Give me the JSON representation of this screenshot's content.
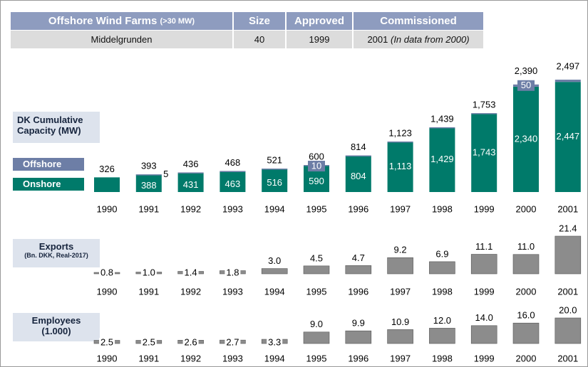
{
  "table": {
    "header": [
      "Offshore Wind Farms",
      "Size",
      "Approved",
      "Commissioned"
    ],
    "header_note": "(>30 MW)",
    "rows": [
      [
        "Middelgrunden",
        40,
        1999,
        2001
      ]
    ],
    "row_note": "(In data from 2000)"
  },
  "chart_data": [
    {
      "type": "stacked_bar",
      "title": "DK Cumulative Capacity  (MW)",
      "categories": [
        "1990",
        "1991",
        "1992",
        "1993",
        "1994",
        "1995",
        "1996",
        "1997",
        "1998",
        "1999",
        "2000",
        "2001"
      ],
      "series": [
        {
          "name": "Onshore",
          "color": "#007a6a",
          "values": [
            326,
            388,
            431,
            463,
            516,
            590,
            804,
            1113,
            1429,
            1743,
            2340,
            2447
          ],
          "value_labels": [
            null,
            "388",
            "431",
            "463",
            "516",
            "590",
            "804",
            "1,113",
            "1,429",
            "1,743",
            "2,340",
            "2,447"
          ]
        },
        {
          "name": "Offshore",
          "color": "#6d7ea6",
          "values": [
            null,
            5,
            5,
            5,
            5,
            10,
            10,
            10,
            10,
            10,
            50,
            50
          ],
          "value_labels": [
            null,
            "5",
            null,
            null,
            null,
            "10",
            null,
            null,
            null,
            null,
            "50",
            null
          ]
        }
      ],
      "totals": [
        326,
        393,
        436,
        468,
        521,
        600,
        814,
        1123,
        1439,
        1753,
        2390,
        2497
      ],
      "total_labels": [
        "326",
        "393",
        "436",
        "468",
        "521",
        "600",
        "814",
        "1,123",
        "1,439",
        "1,753",
        "2,390",
        "2,497"
      ]
    },
    {
      "type": "bar",
      "title": "Exports",
      "subtitle": "(Bn. DKK, Real-2017)",
      "color": "#8c8c8c",
      "categories": [
        "1990",
        "1991",
        "1992",
        "1993",
        "1994",
        "1995",
        "1996",
        "1997",
        "1998",
        "1999",
        "2000",
        "2001"
      ],
      "values": [
        0.8,
        1.0,
        1.4,
        1.8,
        3.0,
        4.5,
        4.7,
        9.2,
        6.9,
        11.1,
        11.0,
        21.4
      ],
      "value_labels": [
        "0.8",
        "1.0",
        "1.4",
        "1.8",
        "3.0",
        "4.5",
        "4.7",
        "9.2",
        "6.9",
        "11.1",
        "11.0",
        "21.4"
      ]
    },
    {
      "type": "bar",
      "title": "Employees",
      "subtitle": "(1.000)",
      "color": "#8c8c8c",
      "categories": [
        "1990",
        "1991",
        "1992",
        "1993",
        "1994",
        "1995",
        "1996",
        "1997",
        "1998",
        "1999",
        "2000",
        "2001"
      ],
      "values": [
        2.5,
        2.5,
        2.6,
        2.7,
        3.3,
        9.0,
        9.9,
        10.9,
        12.0,
        14.0,
        16.0,
        20.0
      ],
      "value_labels": [
        "2.5",
        "2.5",
        "2.6",
        "2.7",
        "3.3",
        "9.0",
        "9.9",
        "10.9",
        "12.0",
        "14.0",
        "16.0",
        "20.0"
      ]
    }
  ]
}
